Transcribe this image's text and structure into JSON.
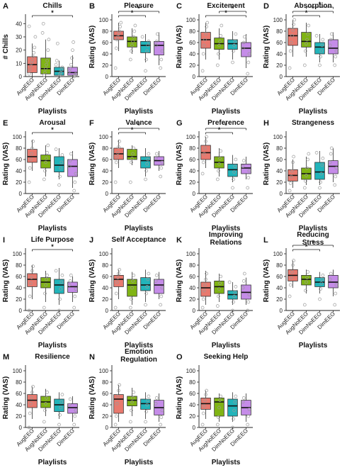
{
  "figure": {
    "x_categories": [
      "AugEEG",
      "AugNoEEG",
      "DimNoEEG",
      "DimEEG"
    ],
    "group_colors": [
      "#e8796e",
      "#80b414",
      "#22b4ba",
      "#c58ce8"
    ],
    "x_axis_label": "Playlists",
    "y_axis_label": "Rating (VAS)",
    "significance_marker": "*"
  },
  "chart_data": [
    {
      "letter": "A",
      "type": "box",
      "title": "Chills",
      "ylabel": "# Chills",
      "ylim": [
        0,
        45
      ],
      "yticks": [
        0,
        10,
        20,
        30,
        40
      ],
      "boxes": [
        {
          "min": 0,
          "q1": 3,
          "median": 9,
          "q3": 15,
          "max": 25
        },
        {
          "min": 0,
          "q1": 2,
          "median": 6,
          "q3": 14,
          "max": 28
        },
        {
          "min": 0,
          "q1": 1,
          "median": 4,
          "q3": 7,
          "max": 12
        },
        {
          "min": 0,
          "q1": 1,
          "median": 3,
          "q3": 7,
          "max": 16
        }
      ],
      "significance": [
        {
          "from": 0,
          "to": 3
        }
      ],
      "points": [
        [
          2,
          5,
          8,
          10,
          12,
          15,
          18,
          22,
          30,
          38
        ],
        [
          1,
          3,
          6,
          9,
          12,
          20,
          28,
          33,
          40
        ],
        [
          0,
          2,
          3,
          5,
          7,
          9,
          12,
          25
        ],
        [
          0,
          1,
          2,
          4,
          6,
          9,
          14,
          20,
          26
        ]
      ]
    },
    {
      "letter": "B",
      "type": "box",
      "title": "Pleasure",
      "ylim": [
        0,
        105
      ],
      "yticks": [
        0,
        20,
        40,
        60,
        80,
        100
      ],
      "boxes": [
        {
          "min": 45,
          "q1": 65,
          "median": 72,
          "q3": 80,
          "max": 95
        },
        {
          "min": 40,
          "q1": 52,
          "median": 62,
          "q3": 70,
          "max": 85
        },
        {
          "min": 25,
          "q1": 42,
          "median": 55,
          "q3": 62,
          "max": 75
        },
        {
          "min": 20,
          "q1": 38,
          "median": 55,
          "q3": 62,
          "max": 78
        }
      ],
      "significance": [
        {
          "from": 0,
          "to": 2
        },
        {
          "from": 0,
          "to": 3
        }
      ],
      "points": [
        [
          15,
          50,
          65,
          70,
          75,
          80,
          88,
          95
        ],
        [
          30,
          45,
          55,
          62,
          70,
          80,
          90
        ],
        [
          10,
          30,
          45,
          55,
          62,
          70
        ],
        [
          15,
          30,
          45,
          55,
          62,
          75
        ]
      ]
    },
    {
      "letter": "C",
      "type": "box",
      "title": "Excitement",
      "ylim": [
        0,
        105
      ],
      "yticks": [
        0,
        20,
        40,
        60,
        80,
        100
      ],
      "boxes": [
        {
          "min": 30,
          "q1": 50,
          "median": 65,
          "q3": 78,
          "max": 95
        },
        {
          "min": 30,
          "q1": 48,
          "median": 58,
          "q3": 68,
          "max": 85
        },
        {
          "min": 30,
          "q1": 48,
          "median": 58,
          "q3": 65,
          "max": 80
        },
        {
          "min": 15,
          "q1": 35,
          "median": 50,
          "q3": 60,
          "max": 75
        }
      ],
      "significance": [
        {
          "from": 0,
          "to": 3
        },
        {
          "from": 1,
          "to": 3
        }
      ],
      "points": [
        [
          10,
          40,
          55,
          65,
          75,
          88,
          95
        ],
        [
          20,
          40,
          55,
          62,
          72,
          90
        ],
        [
          25,
          45,
          55,
          62,
          75
        ],
        [
          5,
          25,
          40,
          50,
          60,
          70
        ]
      ]
    },
    {
      "letter": "D",
      "type": "box",
      "title": "Absorption",
      "ylim": [
        0,
        105
      ],
      "yticks": [
        0,
        20,
        40,
        60,
        80,
        100
      ],
      "boxes": [
        {
          "min": 35,
          "q1": 55,
          "median": 72,
          "q3": 85,
          "max": 100
        },
        {
          "min": 35,
          "q1": 52,
          "median": 62,
          "q3": 78,
          "max": 95
        },
        {
          "min": 25,
          "q1": 40,
          "median": 52,
          "q3": 60,
          "max": 75
        },
        {
          "min": 25,
          "q1": 40,
          "median": 50,
          "q3": 65,
          "max": 78
        }
      ],
      "significance": [
        {
          "from": 0,
          "to": 2
        },
        {
          "from": 0,
          "to": 3
        },
        {
          "from": 1,
          "to": 3
        }
      ],
      "points": [
        [
          15,
          45,
          60,
          72,
          82,
          92,
          100
        ],
        [
          20,
          45,
          58,
          65,
          75,
          90
        ],
        [
          20,
          35,
          45,
          55,
          65,
          72
        ],
        [
          20,
          35,
          45,
          55,
          65,
          75
        ]
      ]
    },
    {
      "letter": "E",
      "type": "box",
      "title": "Arousal",
      "ylim": [
        0,
        105
      ],
      "yticks": [
        0,
        20,
        40,
        60,
        80,
        100
      ],
      "boxes": [
        {
          "min": 40,
          "q1": 55,
          "median": 65,
          "q3": 78,
          "max": 95
        },
        {
          "min": 30,
          "q1": 45,
          "median": 58,
          "q3": 68,
          "max": 85
        },
        {
          "min": 25,
          "q1": 38,
          "median": 50,
          "q3": 65,
          "max": 80
        },
        {
          "min": 10,
          "q1": 30,
          "median": 48,
          "q3": 60,
          "max": 75
        }
      ],
      "significance": [
        {
          "from": 0,
          "to": 3
        }
      ],
      "points": [
        [
          20,
          45,
          60,
          70,
          80,
          92
        ],
        [
          25,
          40,
          55,
          62,
          72,
          85
        ],
        [
          15,
          30,
          45,
          55,
          68,
          78
        ],
        [
          5,
          20,
          35,
          48,
          58,
          70
        ]
      ]
    },
    {
      "letter": "F",
      "type": "box",
      "title": "Valence",
      "ylim": [
        0,
        105
      ],
      "yticks": [
        0,
        20,
        40,
        60,
        80,
        100
      ],
      "boxes": [
        {
          "min": 45,
          "q1": 60,
          "median": 70,
          "q3": 80,
          "max": 95
        },
        {
          "min": 50,
          "q1": 60,
          "median": 65,
          "q3": 78,
          "max": 85
        },
        {
          "min": 30,
          "q1": 45,
          "median": 58,
          "q3": 65,
          "max": 80
        },
        {
          "min": 40,
          "q1": 50,
          "median": 58,
          "q3": 65,
          "max": 75
        }
      ],
      "significance": [
        {
          "from": 0,
          "to": 2
        },
        {
          "from": 0,
          "to": 3
        }
      ],
      "points": [
        [
          20,
          55,
          65,
          72,
          82,
          92
        ],
        [
          20,
          55,
          62,
          70,
          80
        ],
        [
          25,
          40,
          52,
          60,
          70
        ],
        [
          30,
          45,
          55,
          62,
          70
        ]
      ]
    },
    {
      "letter": "G",
      "type": "box",
      "title": "Preference",
      "ylim": [
        0,
        105
      ],
      "yticks": [
        0,
        20,
        40,
        60,
        80,
        100
      ],
      "boxes": [
        {
          "min": 45,
          "q1": 60,
          "median": 72,
          "q3": 85,
          "max": 100
        },
        {
          "min": 30,
          "q1": 45,
          "median": 55,
          "q3": 65,
          "max": 80
        },
        {
          "min": 20,
          "q1": 30,
          "median": 42,
          "q3": 52,
          "max": 68
        },
        {
          "min": 25,
          "q1": 35,
          "median": 45,
          "q3": 52,
          "max": 65
        }
      ],
      "significance": [
        {
          "from": 0,
          "to": 2
        },
        {
          "from": 0,
          "to": 3
        }
      ],
      "points": [
        [
          35,
          55,
          70,
          80,
          92,
          100
        ],
        [
          25,
          40,
          52,
          62,
          75
        ],
        [
          10,
          25,
          38,
          48,
          60
        ],
        [
          10,
          28,
          40,
          48,
          58
        ]
      ]
    },
    {
      "letter": "H",
      "type": "box",
      "title": "Strangeness",
      "ylim": [
        0,
        105
      ],
      "yticks": [
        0,
        20,
        40,
        60,
        80,
        100
      ],
      "boxes": [
        {
          "min": 10,
          "q1": 22,
          "median": 32,
          "q3": 42,
          "max": 60
        },
        {
          "min": 15,
          "q1": 25,
          "median": 35,
          "q3": 45,
          "max": 65
        },
        {
          "min": 15,
          "q1": 25,
          "median": 38,
          "q3": 55,
          "max": 75
        },
        {
          "min": 20,
          "q1": 35,
          "median": 48,
          "q3": 58,
          "max": 80
        }
      ],
      "significance": [],
      "points": [
        [
          5,
          18,
          30,
          40,
          55,
          65
        ],
        [
          10,
          22,
          32,
          45,
          60,
          70
        ],
        [
          10,
          20,
          35,
          50,
          62,
          72
        ],
        [
          15,
          30,
          45,
          55,
          70,
          80
        ]
      ]
    },
    {
      "letter": "I",
      "type": "box",
      "title": "Life Purpose",
      "ylim": [
        0,
        105
      ],
      "yticks": [
        0,
        20,
        40,
        60,
        80,
        100
      ],
      "boxes": [
        {
          "min": 20,
          "q1": 42,
          "median": 55,
          "q3": 65,
          "max": 80
        },
        {
          "min": 15,
          "q1": 40,
          "median": 50,
          "q3": 58,
          "max": 70
        },
        {
          "min": 10,
          "q1": 30,
          "median": 45,
          "q3": 55,
          "max": 75
        },
        {
          "min": 15,
          "q1": 32,
          "median": 42,
          "q3": 50,
          "max": 60
        }
      ],
      "significance": [
        {
          "from": 0,
          "to": 3
        }
      ],
      "points": [
        [
          0,
          25,
          48,
          58,
          70,
          78
        ],
        [
          5,
          30,
          45,
          55,
          62
        ],
        [
          0,
          20,
          38,
          50,
          62,
          70
        ],
        [
          5,
          25,
          38,
          45,
          52,
          62
        ]
      ]
    },
    {
      "letter": "J",
      "type": "box",
      "title": "Self Acceptance",
      "ylim": [
        0,
        105
      ],
      "yticks": [
        0,
        20,
        40,
        60,
        80,
        100
      ],
      "boxes": [
        {
          "min": 20,
          "q1": 42,
          "median": 55,
          "q3": 62,
          "max": 72
        },
        {
          "min": 10,
          "q1": 25,
          "median": 45,
          "q3": 55,
          "max": 68
        },
        {
          "min": 15,
          "q1": 35,
          "median": 45,
          "q3": 58,
          "max": 72
        },
        {
          "min": 20,
          "q1": 30,
          "median": 45,
          "q3": 55,
          "max": 68
        }
      ],
      "significance": [],
      "points": [
        [
          5,
          30,
          50,
          58,
          65,
          72
        ],
        [
          5,
          20,
          40,
          52,
          62
        ],
        [
          10,
          30,
          42,
          55,
          65
        ],
        [
          10,
          25,
          40,
          52,
          62
        ]
      ]
    },
    {
      "letter": "K",
      "type": "box",
      "title": "Improving\nRelations",
      "ylim": [
        0,
        105
      ],
      "yticks": [
        0,
        20,
        40,
        60,
        80,
        100
      ],
      "boxes": [
        {
          "min": 10,
          "q1": 25,
          "median": 40,
          "q3": 50,
          "max": 70
        },
        {
          "min": 15,
          "q1": 30,
          "median": 42,
          "q3": 52,
          "max": 65
        },
        {
          "min": 10,
          "q1": 20,
          "median": 28,
          "q3": 35,
          "max": 50
        },
        {
          "min": 10,
          "q1": 20,
          "median": 32,
          "q3": 45,
          "max": 58
        }
      ],
      "significance": [],
      "points": [
        [
          5,
          20,
          35,
          45,
          55,
          65
        ],
        [
          8,
          25,
          38,
          48,
          60
        ],
        [
          0,
          15,
          25,
          32,
          42,
          50
        ],
        [
          0,
          15,
          28,
          40,
          52,
          65
        ]
      ]
    },
    {
      "letter": "L",
      "type": "box",
      "title": "Reducing\nStress",
      "ylim": [
        0,
        105
      ],
      "yticks": [
        0,
        20,
        40,
        60,
        80,
        100
      ],
      "boxes": [
        {
          "min": 40,
          "q1": 52,
          "median": 62,
          "q3": 72,
          "max": 88
        },
        {
          "min": 30,
          "q1": 45,
          "median": 55,
          "q3": 62,
          "max": 72
        },
        {
          "min": 30,
          "q1": 42,
          "median": 50,
          "q3": 58,
          "max": 68
        },
        {
          "min": 25,
          "q1": 40,
          "median": 50,
          "q3": 62,
          "max": 72
        }
      ],
      "significance": [
        {
          "from": 0,
          "to": 2
        },
        {
          "from": 0,
          "to": 3
        }
      ],
      "points": [
        [
          25,
          45,
          58,
          68,
          80,
          88
        ],
        [
          10,
          35,
          50,
          58,
          68
        ],
        [
          20,
          38,
          48,
          55,
          62
        ],
        [
          10,
          30,
          45,
          55,
          65
        ]
      ]
    },
    {
      "letter": "M",
      "type": "box",
      "title": "Resilience",
      "ylim": [
        0,
        105
      ],
      "yticks": [
        0,
        20,
        40,
        60,
        80,
        100
      ],
      "boxes": [
        {
          "min": 15,
          "q1": 35,
          "median": 48,
          "q3": 58,
          "max": 72
        },
        {
          "min": 20,
          "q1": 35,
          "median": 45,
          "q3": 55,
          "max": 68
        },
        {
          "min": 15,
          "q1": 28,
          "median": 40,
          "q3": 50,
          "max": 62
        },
        {
          "min": 10,
          "q1": 25,
          "median": 35,
          "q3": 42,
          "max": 55
        }
      ],
      "significance": [],
      "points": [
        [
          0,
          25,
          42,
          52,
          62,
          72
        ],
        [
          10,
          30,
          42,
          52,
          62
        ],
        [
          5,
          22,
          35,
          45,
          58
        ],
        [
          5,
          20,
          30,
          40,
          50
        ]
      ]
    },
    {
      "letter": "N",
      "type": "box",
      "title": "Emotion\nRegulation",
      "ylim": [
        0,
        105
      ],
      "yticks": [
        0,
        20,
        40,
        60,
        80,
        100
      ],
      "boxes": [
        {
          "min": 10,
          "q1": 25,
          "median": 50,
          "q3": 58,
          "max": 75
        },
        {
          "min": 20,
          "q1": 38,
          "median": 48,
          "q3": 55,
          "max": 70
        },
        {
          "min": 15,
          "q1": 32,
          "median": 42,
          "q3": 50,
          "max": 62
        },
        {
          "min": 10,
          "q1": 22,
          "median": 35,
          "q3": 48,
          "max": 60
        }
      ],
      "significance": [],
      "points": [
        [
          5,
          20,
          42,
          55,
          65,
          75
        ],
        [
          10,
          30,
          45,
          52,
          62
        ],
        [
          10,
          28,
          40,
          48,
          55
        ],
        [
          5,
          18,
          30,
          42,
          52
        ]
      ]
    },
    {
      "letter": "O",
      "type": "box",
      "title": "Seeking Help",
      "ylim": [
        0,
        105
      ],
      "yticks": [
        0,
        20,
        40,
        60,
        80,
        100
      ],
      "boxes": [
        {
          "min": 15,
          "q1": 32,
          "median": 42,
          "q3": 52,
          "max": 65
        },
        {
          "min": 10,
          "q1": 20,
          "median": 45,
          "q3": 52,
          "max": 60
        },
        {
          "min": 10,
          "q1": 20,
          "median": 38,
          "q3": 50,
          "max": 62
        },
        {
          "min": 10,
          "q1": 22,
          "median": 35,
          "q3": 48,
          "max": 60
        }
      ],
      "significance": [],
      "points": [
        [
          5,
          25,
          38,
          48,
          58,
          65
        ],
        [
          5,
          18,
          35,
          48,
          55
        ],
        [
          0,
          15,
          30,
          45,
          55
        ],
        [
          5,
          20,
          32,
          45,
          52
        ]
      ]
    }
  ]
}
